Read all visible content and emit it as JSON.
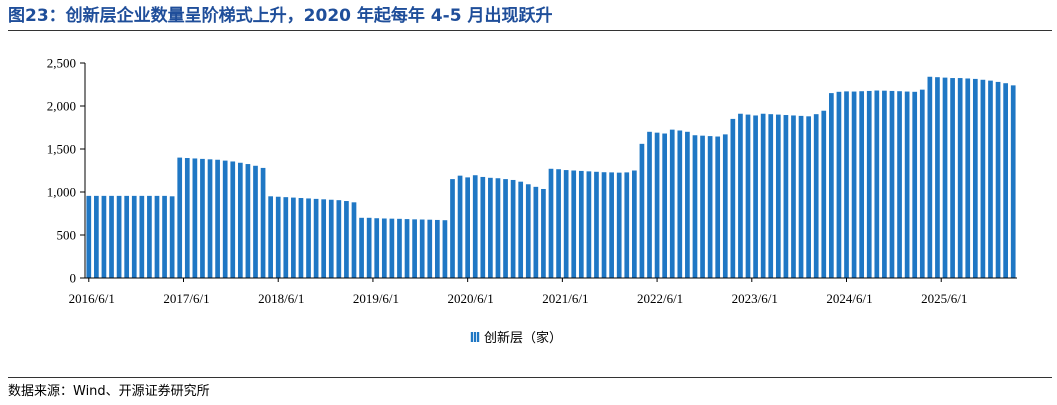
{
  "header": {
    "title": "图23：创新层企业数量呈阶梯式上升，2020 年起每年 4-5 月出现跃升"
  },
  "footer": {
    "source": "数据来源：Wind、开源证券研究所"
  },
  "colors": {
    "bar": "#1f77c4",
    "bar_stripe": "#ffffff",
    "axis": "#000000"
  },
  "chart_data": {
    "type": "bar",
    "title": "",
    "xlabel": "",
    "ylabel": "",
    "ylim": [
      0,
      2500
    ],
    "yticks": [
      0,
      500,
      1000,
      1500,
      2000,
      2500
    ],
    "ytick_labels": [
      "0",
      "500",
      "1,000",
      "1,500",
      "2,000",
      "2,500"
    ],
    "xtick_labels": [
      "2016/6/1",
      "2017/6/1",
      "2018/6/1",
      "2019/6/1",
      "2020/6/1",
      "2021/6/1",
      "2022/6/1",
      "2023/6/1",
      "2024/6/1",
      "2025/6/1"
    ],
    "grid": false,
    "legend_position": "bottom-center",
    "series": [
      {
        "name": "创新层（家）",
        "values": [
          955,
          955,
          955,
          955,
          955,
          955,
          955,
          955,
          955,
          955,
          955,
          950,
          1400,
          1395,
          1390,
          1385,
          1380,
          1375,
          1365,
          1355,
          1340,
          1325,
          1305,
          1280,
          950,
          945,
          940,
          935,
          930,
          925,
          920,
          915,
          910,
          905,
          895,
          880,
          700,
          700,
          695,
          692,
          690,
          688,
          685,
          682,
          680,
          678,
          675,
          672,
          1150,
          1190,
          1170,
          1195,
          1175,
          1165,
          1160,
          1150,
          1140,
          1120,
          1090,
          1060,
          1035,
          1270,
          1265,
          1255,
          1250,
          1245,
          1240,
          1235,
          1230,
          1228,
          1225,
          1228,
          1250,
          1560,
          1700,
          1690,
          1680,
          1725,
          1715,
          1700,
          1660,
          1655,
          1650,
          1645,
          1670,
          1850,
          1910,
          1900,
          1890,
          1910,
          1905,
          1900,
          1895,
          1890,
          1885,
          1880,
          1905,
          1945,
          2150,
          2165,
          2170,
          2168,
          2172,
          2175,
          2180,
          2178,
          2175,
          2172,
          2168,
          2165,
          2190,
          2340,
          2335,
          2330,
          2325,
          2325,
          2320,
          2315,
          2305,
          2295,
          2280,
          2265,
          2240
        ]
      }
    ]
  }
}
